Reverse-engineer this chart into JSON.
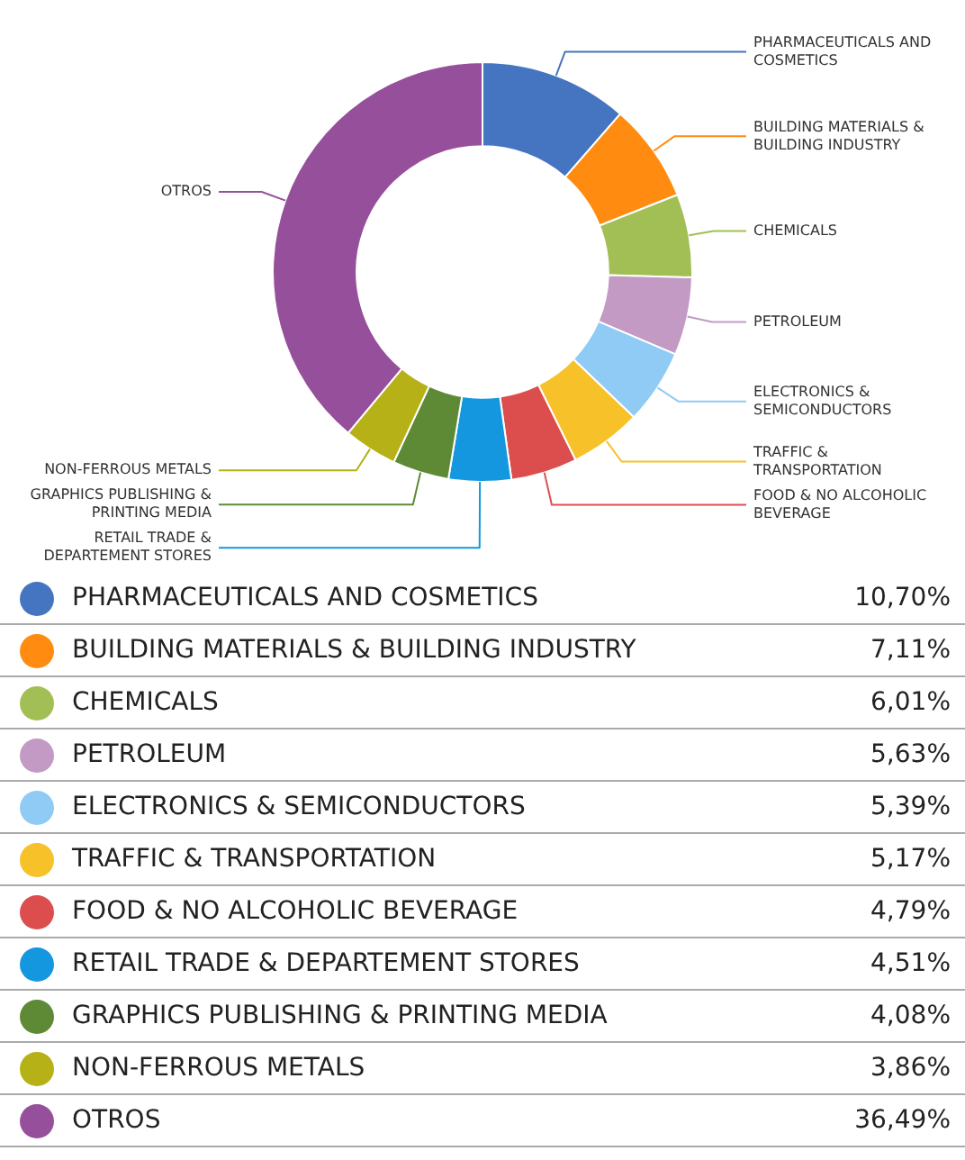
{
  "chart_data": {
    "type": "donut",
    "categories": [
      "PHARMACEUTICALS AND COSMETICS",
      "BUILDING MATERIALS & BUILDING INDUSTRY",
      "CHEMICALS",
      "PETROLEUM",
      "ELECTRONICS & SEMICONDUCTORS",
      "TRAFFIC & TRANSPORTATION",
      "FOOD & NO ALCOHOLIC BEVERAGE",
      "RETAIL TRADE & DEPARTEMENT STORES",
      "GRAPHICS PUBLISHING & PRINTING MEDIA",
      "NON-FERROUS METALS",
      "OTROS"
    ],
    "values": [
      10.7,
      7.11,
      6.01,
      5.63,
      5.39,
      5.17,
      4.79,
      4.51,
      4.08,
      3.86,
      36.49
    ],
    "colors": [
      "#4575c0",
      "#ff8c10",
      "#a2bf55",
      "#c29ac4",
      "#90cbf5",
      "#f7c12a",
      "#dc4e4e",
      "#1497de",
      "#5e8a35",
      "#b5b116",
      "#964f9b"
    ],
    "value_labels": [
      "10,70%",
      "7,11%",
      "6,01%",
      "5,63%",
      "5,39%",
      "5,17%",
      "4,79%",
      "4,51%",
      "4,08%",
      "3,86%",
      "36,49%"
    ],
    "legend": "bottom"
  }
}
